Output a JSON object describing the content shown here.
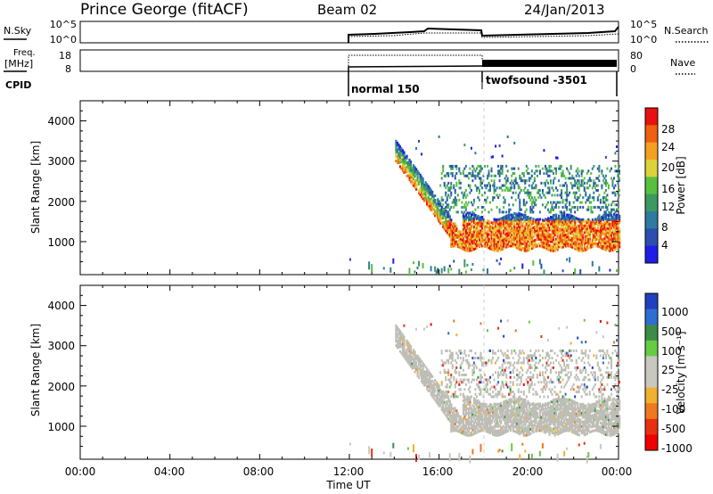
{
  "header": {
    "station": "Prince George (fitACF)",
    "beam": "Beam 02",
    "date": "24/Jan/2013"
  },
  "strips": {
    "nsky_label": "N.Sky",
    "nsearch_label": "N.Search",
    "noise_ticks_left": [
      "10^5",
      "10^0"
    ],
    "noise_ticks_right": [
      "10^5",
      "10^0"
    ],
    "freq_label": "Freq.",
    "freq_unit": "[MHz]",
    "freq_ticks": [
      "18",
      "8"
    ],
    "nave_label": "Nave",
    "nave_ticks": [
      "80",
      "0"
    ],
    "cpid_label": "CPID",
    "modes": [
      {
        "name": "normal 150",
        "start_hour": 12
      },
      {
        "name": "twofsound -3501",
        "start_hour": 18
      }
    ]
  },
  "colors": {
    "power_scale": [
      "#1e1ee6",
      "#2a4fb0",
      "#2e7ba0",
      "#3c9a60",
      "#58c040",
      "#dcd23c",
      "#f5a020",
      "#f06010",
      "#e81010"
    ],
    "velocity_scale": [
      "#2040c0",
      "#2e6ed0",
      "#3c8c48",
      "#66cc44",
      "#c8c8c0",
      "#c8c8c0",
      "#f0b030",
      "#f07820",
      "#e83010",
      "#ee0000"
    ],
    "ground_scatter": "#bebeb6"
  },
  "chart_data": [
    {
      "type": "heatmap",
      "panel": "power",
      "ylabel": "Slant Range [km]",
      "xlabel": "",
      "y_ticks": [
        "4000",
        "3000",
        "2000",
        "1000"
      ],
      "colorbar_label": "Power [dB]",
      "colorbar_ticks": [
        "28",
        "24",
        "20",
        "16",
        "12",
        "8",
        "4"
      ],
      "x_range_hours": [
        0,
        24
      ],
      "y_range_km": [
        180,
        4500
      ],
      "scatter_bands": [
        {
          "t_start": 14.0,
          "t_end": 24.0,
          "range_top": 3500,
          "range_bottom": 800,
          "peak_db": 28
        }
      ]
    },
    {
      "type": "heatmap",
      "panel": "velocity",
      "ylabel": "Slant Range [km]",
      "xlabel": "Time UT",
      "y_ticks": [
        "4000",
        "3000",
        "2000",
        "1000"
      ],
      "x_ticks": [
        "00:00",
        "04:00",
        "08:00",
        "12:00",
        "16:00",
        "20:00",
        "00:00"
      ],
      "colorbar_label": "Velocity [m s⁻¹]",
      "colorbar_ticks": [
        "1000",
        "500",
        "100",
        "25",
        "-25",
        "-100",
        "-500",
        "-1000"
      ],
      "x_range_hours": [
        0,
        24
      ],
      "y_range_km": [
        180,
        4500
      ]
    }
  ]
}
